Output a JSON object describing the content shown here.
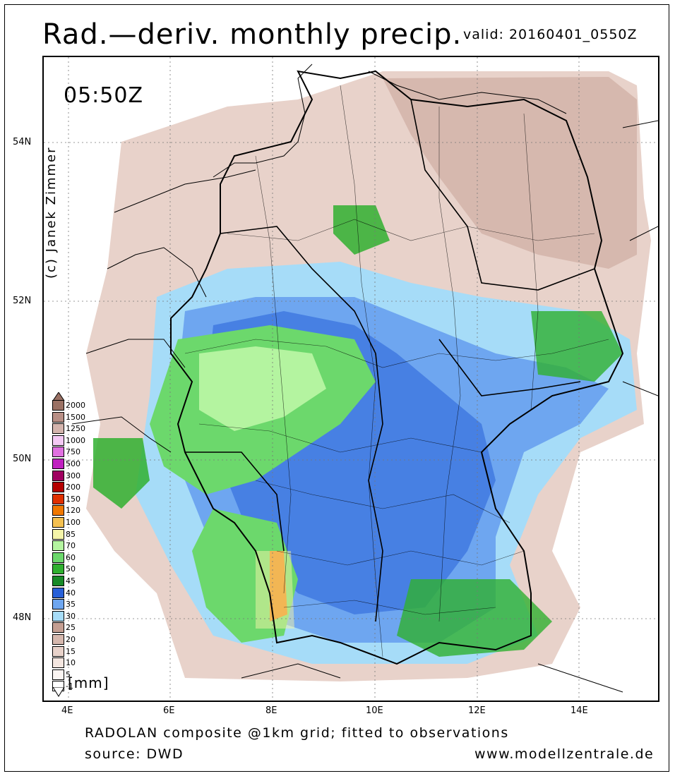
{
  "header": {
    "title": "Rad.—deriv. monthly precip.",
    "valid": "valid: 20160401_0550Z"
  },
  "map": {
    "time_label": "05:50Z",
    "copyright": "(c) Janek Zimmer",
    "lat_ticks": [
      "54N",
      "52N",
      "50N",
      "48N"
    ],
    "lon_ticks": [
      "4E",
      "6E",
      "8E",
      "10E",
      "12E",
      "14E"
    ],
    "unit_label": "[mm]"
  },
  "legend": {
    "levels": [
      {
        "label": "2000",
        "color": "#9a7164"
      },
      {
        "label": "1500",
        "color": "#b88f86"
      },
      {
        "label": "1250",
        "color": "#d4b4ad"
      },
      {
        "label": "1000",
        "color": "#f4c9f4"
      },
      {
        "label": "750",
        "color": "#e070e0"
      },
      {
        "label": "500",
        "color": "#c020c0"
      },
      {
        "label": "300",
        "color": "#a00060"
      },
      {
        "label": "200",
        "color": "#b40000"
      },
      {
        "label": "150",
        "color": "#e03000"
      },
      {
        "label": "120",
        "color": "#f07800"
      },
      {
        "label": "100",
        "color": "#f4c050"
      },
      {
        "label": "85",
        "color": "#f4f4a8"
      },
      {
        "label": "70",
        "color": "#b4f4a0"
      },
      {
        "label": "60",
        "color": "#6cd86c"
      },
      {
        "label": "50",
        "color": "#30b030"
      },
      {
        "label": "45",
        "color": "#188a28"
      },
      {
        "label": "40",
        "color": "#2860d8"
      },
      {
        "label": "35",
        "color": "#6ea6f0"
      },
      {
        "label": "30",
        "color": "#a6dcf8"
      },
      {
        "label": "25",
        "color": "#c49e92"
      },
      {
        "label": "20",
        "color": "#d6b8ae"
      },
      {
        "label": "15",
        "color": "#e8d2ca"
      },
      {
        "label": "10",
        "color": "#f4e6e0"
      },
      {
        "label": "5",
        "color": "#fbf5f2"
      },
      {
        "label": "-1",
        "color": "#ffffff"
      }
    ]
  },
  "footer": {
    "line1": "RADOLAN composite @1km grid; fitted to observations",
    "line2": "source: DWD",
    "website": "www.modellzentrale.de"
  }
}
